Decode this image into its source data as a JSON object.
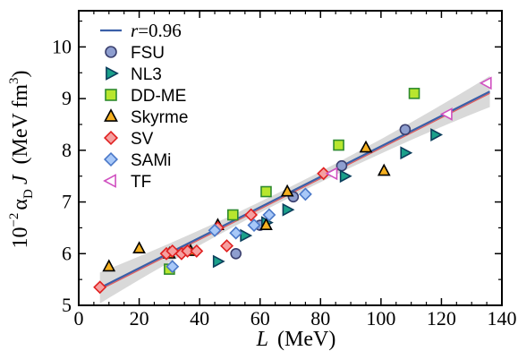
{
  "chart_data": {
    "type": "scatter",
    "xlabel_var": "L",
    "xlabel_unit": "(MeV)",
    "ylabel_prefix": "10",
    "ylabel_exp": "−2",
    "ylabel_alpha": "α",
    "ylabel_sub": "D",
    "ylabel_J": "J",
    "ylabel_unit": "(MeV fm",
    "ylabel_unit_exp": "3",
    "ylabel_unit_close": ")",
    "xlim": [
      0,
      140
    ],
    "ylim": [
      5,
      10.7
    ],
    "xticks": [
      0,
      20,
      40,
      60,
      80,
      100,
      120,
      140
    ],
    "yticks": [
      5,
      6,
      7,
      8,
      9,
      10
    ],
    "fit": {
      "label_var": "r",
      "label_eq": "=0.96",
      "slope": 0.02946,
      "intercept": 5.13,
      "x_range": [
        7,
        136
      ],
      "band_halfwidth_ends": 0.3,
      "band_halfwidth_mid": 0.1,
      "line_color": "#3a5fa8",
      "band_color": "#d9d9d9"
    },
    "series": [
      {
        "name": "FSU",
        "marker": "circle",
        "fill": "#8e9ecf",
        "stroke": "#3a3f6e",
        "points": [
          [
            52,
            6.0
          ],
          [
            60,
            6.55
          ],
          [
            71,
            7.1
          ],
          [
            87,
            7.7
          ],
          [
            108,
            8.4
          ]
        ]
      },
      {
        "name": "NL3",
        "marker": "triangle-right",
        "fill": "#1aa08a",
        "stroke": "#0c3e5c",
        "points": [
          [
            46,
            5.85
          ],
          [
            55,
            6.35
          ],
          [
            62,
            6.6
          ],
          [
            69,
            6.85
          ],
          [
            88,
            7.5
          ],
          [
            108,
            7.95
          ],
          [
            118,
            8.3
          ]
        ]
      },
      {
        "name": "DD-ME",
        "marker": "square",
        "fill": "#b8e62e",
        "stroke": "#2e8a2e",
        "points": [
          [
            30,
            5.7
          ],
          [
            51,
            6.75
          ],
          [
            62,
            7.2
          ],
          [
            86,
            8.1
          ],
          [
            111,
            9.1
          ]
        ]
      },
      {
        "name": "Skyrme",
        "marker": "triangle-up",
        "fill": "#f5b020",
        "stroke": "#000000",
        "points": [
          [
            10,
            5.75
          ],
          [
            20,
            6.1
          ],
          [
            30,
            6.0
          ],
          [
            37,
            6.05
          ],
          [
            46,
            6.55
          ],
          [
            62,
            6.55
          ],
          [
            69,
            7.2
          ],
          [
            95,
            8.05
          ],
          [
            101,
            7.6
          ]
        ]
      },
      {
        "name": "SV",
        "marker": "diamond",
        "fill": "#f5a0a0",
        "stroke": "#e02020",
        "points": [
          [
            7,
            5.35
          ],
          [
            29,
            6.0
          ],
          [
            31,
            6.05
          ],
          [
            34,
            6.0
          ],
          [
            36,
            6.05
          ],
          [
            39,
            6.05
          ],
          [
            46,
            6.5
          ],
          [
            49,
            6.15
          ],
          [
            57,
            6.75
          ],
          [
            81,
            7.55
          ]
        ]
      },
      {
        "name": "SAMi",
        "marker": "diamond",
        "fill": "#a8c8f8",
        "stroke": "#4a78c8",
        "points": [
          [
            31,
            5.75
          ],
          [
            45,
            6.45
          ],
          [
            52,
            6.4
          ],
          [
            58,
            6.55
          ],
          [
            63,
            6.75
          ],
          [
            75,
            7.15
          ]
        ]
      },
      {
        "name": "TF",
        "marker": "triangle-left",
        "fill": "#ffffff",
        "stroke": "#d050c0",
        "points": [
          [
            84,
            7.55
          ],
          [
            122,
            8.7
          ],
          [
            135,
            9.3
          ]
        ]
      }
    ]
  }
}
